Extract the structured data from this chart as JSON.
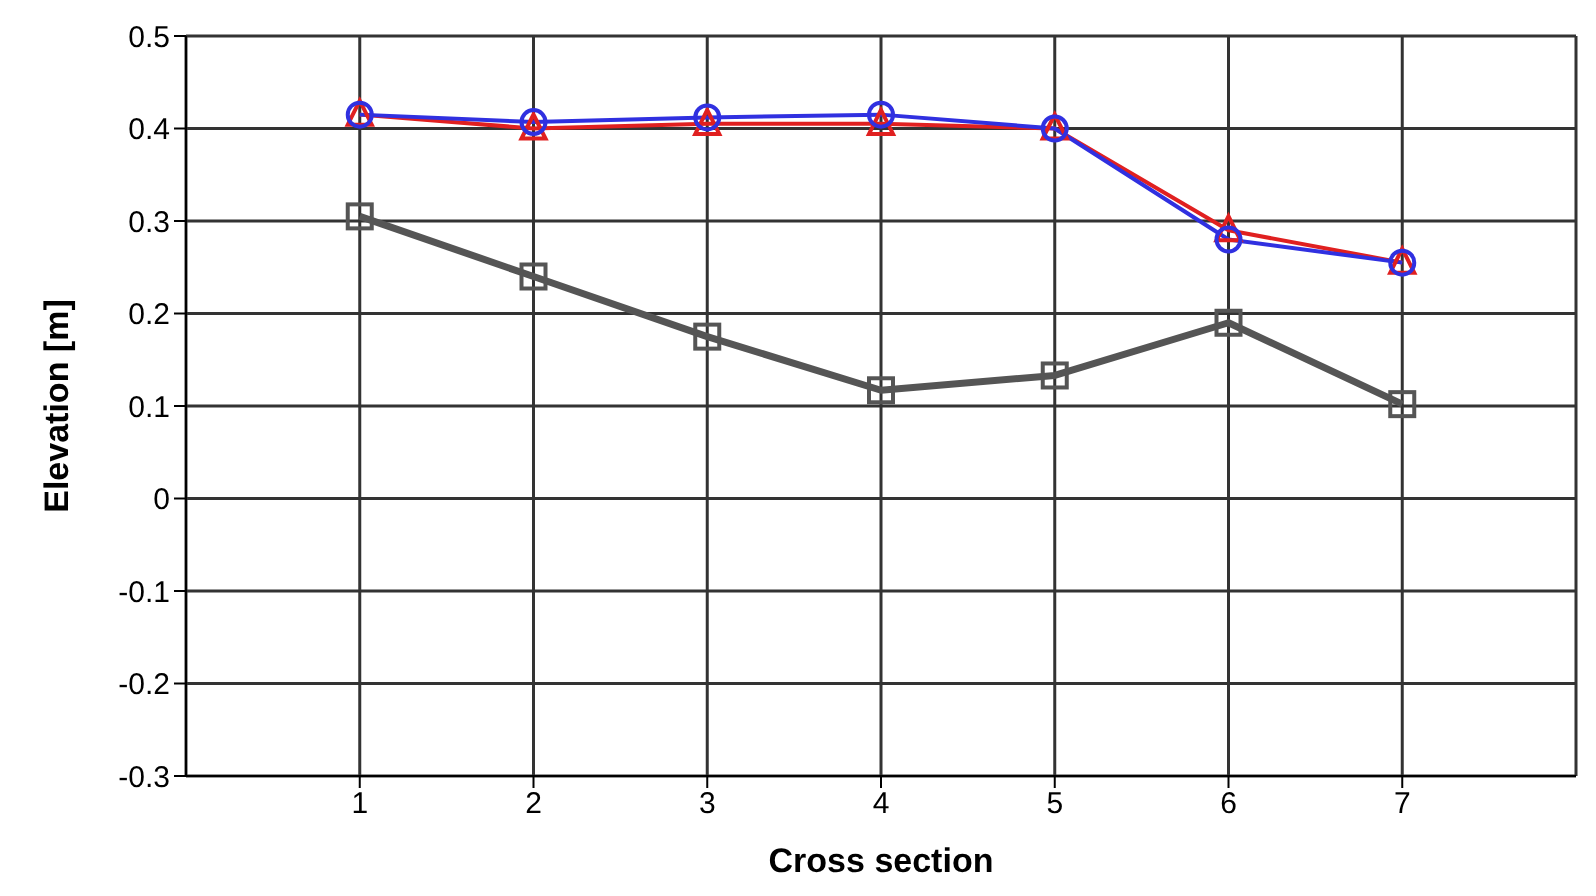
{
  "chart_data": {
    "type": "line",
    "xlabel": "Cross section",
    "ylabel": "Elevation [m]",
    "x": [
      1,
      2,
      3,
      4,
      5,
      6,
      7
    ],
    "xlim": [
      0,
      8
    ],
    "xticks": [
      1,
      2,
      3,
      4,
      5,
      6,
      7
    ],
    "ylim": [
      -0.3,
      0.5
    ],
    "yticks": [
      -0.3,
      -0.2,
      -0.1,
      0,
      0.1,
      0.2,
      0.3,
      0.4,
      0.5
    ],
    "grid": true,
    "legend": false,
    "series": [
      {
        "color": "#555555",
        "marker": "square",
        "values": [
          0.305,
          0.24,
          0.175,
          0.117,
          0.133,
          0.19,
          0.102
        ]
      },
      {
        "color": "#e02020",
        "marker": "triangle",
        "values": [
          0.415,
          0.4,
          0.405,
          0.405,
          0.4,
          0.29,
          0.255
        ]
      },
      {
        "color": "#3030e0",
        "marker": "circle",
        "values": [
          0.415,
          0.407,
          0.412,
          0.415,
          0.4,
          0.28,
          0.255
        ]
      }
    ]
  }
}
